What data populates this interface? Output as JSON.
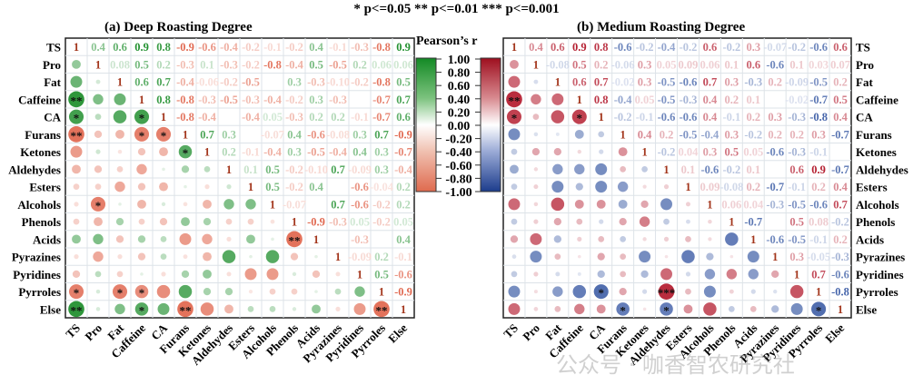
{
  "significance_legend": "* p<=0.05  ** p<=0.01  *** p<=0.001",
  "legend_title": "Pearson’s r",
  "legend_ticks": [
    "1.00",
    "0.80",
    "0.60",
    "0.40",
    "0.20",
    "0.00",
    "-0.20",
    "-0.40",
    "-0.60",
    "-0.80",
    "-1.00"
  ],
  "watermark": "公众号 · 咖香智农研究社",
  "chart_data": [
    {
      "type": "heatmap",
      "title": "(a) Deep Roasting Degree",
      "variables": [
        "TS",
        "Pro",
        "Fat",
        "Caffeine",
        "CA",
        "Furans",
        "Ketones",
        "Aldehydes",
        "Esters",
        "Alcohols",
        "Phenols",
        "Acids",
        "Pyrazines",
        "Pyridines",
        "Pyrroles",
        "Else"
      ],
      "range": [
        -1,
        1
      ],
      "colors": {
        "positive": "#1a8c28",
        "negative": "#e0644b"
      },
      "upper_values_from_diagonal": [
        [
          "1",
          "0.4",
          "0.6",
          "0.9",
          "0.8",
          "-0.9",
          "-0.6",
          "-0.4",
          "-0.2",
          "-0.1",
          "-0.2",
          "0.4",
          "-0.1",
          "-0.3",
          "-0.8",
          "0.9"
        ],
        [
          "1",
          "0.08",
          "0.5",
          "0.2",
          "-0.3",
          "0.1",
          "-0.3",
          "-0.2",
          "-0.8",
          "-0.4",
          "0.5",
          "-0.5",
          "0.2",
          "0.06",
          "0.06"
        ],
        [
          "1",
          "0.6",
          "0.7",
          "-0.4",
          "-0.06",
          "-0.2",
          "-0.5",
          null,
          "0.3",
          "-0.3",
          "-0.10",
          "-0.2",
          "-0.8",
          "0.5"
        ],
        [
          "1",
          "0.8",
          "-0.8",
          "-0.3",
          "-0.5",
          "-0.3",
          "-0.4",
          "-0.2",
          "0.3",
          "-0.3",
          null,
          "-0.7",
          "0.7"
        ],
        [
          "1",
          "-0.8",
          "-0.4",
          null,
          "-0.4",
          "0.05",
          "-0.3",
          "0.2",
          "0.2",
          "-0.1",
          "-0.7",
          "0.6"
        ],
        [
          "1",
          "0.7",
          "0.3",
          null,
          "-0.07",
          "0.4",
          "-0.6",
          "-0.08",
          "0.3",
          "0.7",
          "-0.9"
        ],
        [
          "1",
          "0.2",
          "-0.1",
          "-0.4",
          "0.3",
          "-0.5",
          "-0.4",
          "0.4",
          "0.3",
          "-0.7"
        ],
        [
          "1",
          "0.1",
          "0.5",
          "-0.2",
          "-0.10",
          "0.7",
          "-0.09",
          "0.3",
          "-0.4"
        ],
        [
          "1",
          "0.5",
          "-0.2",
          "0.4",
          null,
          "-0.6",
          "-0.04",
          "0.2"
        ],
        [
          "1",
          "-0.07",
          null,
          "0.7",
          "-0.6",
          "-0.2",
          "0.2"
        ],
        [
          "1",
          "-0.9",
          "-0.3",
          "0.05",
          "-0.2",
          "0.05"
        ],
        [
          "1",
          null,
          "-0.3",
          null,
          "0.4"
        ],
        [
          "1",
          "-0.09",
          "0.2",
          "-0.1"
        ],
        [
          "1",
          "0.5",
          "-0.6"
        ],
        [
          "1",
          "-0.9"
        ],
        [
          "1"
        ]
      ],
      "significance": [
        {
          "row": "Caffeine",
          "col": "TS",
          "mark": "**"
        },
        {
          "row": "CA",
          "col": "TS",
          "mark": "*"
        },
        {
          "row": "CA",
          "col": "Caffeine",
          "mark": "*"
        },
        {
          "row": "Furans",
          "col": "TS",
          "mark": "**"
        },
        {
          "row": "Furans",
          "col": "Caffeine",
          "mark": "*"
        },
        {
          "row": "Furans",
          "col": "CA",
          "mark": "*"
        },
        {
          "row": "Ketones",
          "col": "Furans",
          "mark": "*"
        },
        {
          "row": "Alcohols",
          "col": "Pro",
          "mark": "*"
        },
        {
          "row": "Acids",
          "col": "Phenols",
          "mark": "**"
        },
        {
          "row": "Pyrroles",
          "col": "TS",
          "mark": "*"
        },
        {
          "row": "Pyrroles",
          "col": "Fat",
          "mark": "*"
        },
        {
          "row": "Pyrroles",
          "col": "Caffeine",
          "mark": "*"
        },
        {
          "row": "Else",
          "col": "TS",
          "mark": "**"
        },
        {
          "row": "Else",
          "col": "Caffeine",
          "mark": "*"
        },
        {
          "row": "Else",
          "col": "Furans",
          "mark": "**"
        },
        {
          "row": "Else",
          "col": "Pyrroles",
          "mark": "**"
        }
      ]
    },
    {
      "type": "heatmap",
      "title": "(b) Medium Roasting Degree",
      "variables": [
        "TS",
        "Pro",
        "Fat",
        "Caffeine",
        "CA",
        "Furans",
        "Ketones",
        "Aldehydes",
        "Esters",
        "Alcohols",
        "Phenols",
        "Acids",
        "Pyrazines",
        "Pyridines",
        "Pyrroles",
        "Else"
      ],
      "range": [
        -1,
        1
      ],
      "colors": {
        "positive": "#b2182b",
        "negative": "#2c4f9e"
      },
      "upper_values_from_diagonal": [
        [
          "1",
          "0.4",
          "0.6",
          "0.9",
          "0.8",
          "-0.6",
          "-0.2",
          "-0.4",
          "-0.2",
          "0.6",
          "-0.2",
          "0.3",
          "-0.07",
          "-0.2",
          "-0.6",
          "0.6"
        ],
        [
          "1",
          "-0.08",
          "0.5",
          "0.2",
          "-0.06",
          "0.3",
          "0.05",
          "0.09",
          "0.06",
          "0.1",
          "0.6",
          "-0.6",
          "0.1",
          "0.03",
          "0.07"
        ],
        [
          "1",
          "0.6",
          "0.7",
          "-0.02",
          "0.3",
          "-0.5",
          "-0.6",
          "0.7",
          "0.3",
          "-0.3",
          "0.2",
          "-0.09",
          "-0.5",
          "0.2"
        ],
        [
          "1",
          "0.8",
          "-0.4",
          "0.05",
          "-0.5",
          "-0.3",
          "0.4",
          "0.2",
          "0.1",
          null,
          "-0.02",
          "-0.7",
          "0.5"
        ],
        [
          "1",
          "-0.2",
          "-0.1",
          "-0.6",
          "-0.6",
          "0.4",
          "-0.1",
          "0.2",
          "0.3",
          "-0.3",
          "-0.8",
          "0.4"
        ],
        [
          "1",
          "0.4",
          "0.2",
          "-0.5",
          "-0.4",
          "0.3",
          "-0.2",
          "0.2",
          "0.2",
          "0.3",
          "-0.7"
        ],
        [
          "1",
          "-0.2",
          "0.04",
          "0.3",
          "0.5",
          "0.05",
          "-0.6",
          "-0.3",
          "-0.1",
          null
        ],
        [
          "1",
          "0.1",
          "-0.6",
          "-0.2",
          "0.1",
          null,
          "0.6",
          "0.9",
          "-0.7"
        ],
        [
          "1",
          "0.09",
          "-0.08",
          "0.2",
          "-0.7",
          "-0.1",
          "0.2",
          "0.4"
        ],
        [
          "1",
          "0.06",
          "0.04",
          "-0.3",
          "-0.5",
          "-0.6",
          "0.7"
        ],
        [
          "1",
          "-0.7",
          null,
          "0.5",
          "0.08",
          "-0.2"
        ],
        [
          "1",
          "-0.6",
          "-0.5",
          "-0.1",
          "0.2"
        ],
        [
          "1",
          "0.3",
          "-0.05",
          "-0.3"
        ],
        [
          "1",
          "0.7",
          "-0.6"
        ],
        [
          "1",
          "-0.8"
        ],
        [
          "1"
        ]
      ],
      "significance": [
        {
          "row": "Caffeine",
          "col": "TS",
          "mark": "**"
        },
        {
          "row": "CA",
          "col": "TS",
          "mark": "*"
        },
        {
          "row": "CA",
          "col": "Caffeine",
          "mark": "*"
        },
        {
          "row": "Pyrroles",
          "col": "CA",
          "mark": "*"
        },
        {
          "row": "Pyrroles",
          "col": "Aldehydes",
          "mark": "***"
        },
        {
          "row": "Else",
          "col": "Furans",
          "mark": "*"
        },
        {
          "row": "Else",
          "col": "Aldehydes",
          "mark": "*"
        },
        {
          "row": "Else",
          "col": "Pyrroles",
          "mark": "*"
        }
      ]
    }
  ]
}
